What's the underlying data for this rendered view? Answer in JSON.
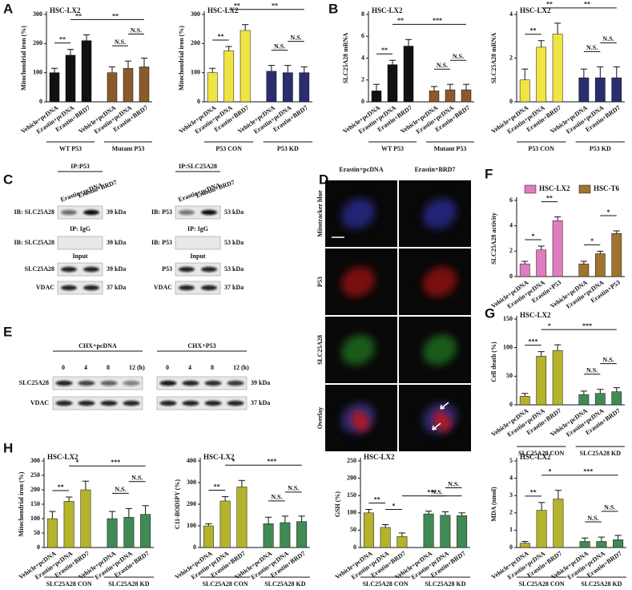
{
  "panel_labels": [
    "A",
    "B",
    "C",
    "D",
    "E",
    "F",
    "G",
    "H"
  ],
  "chart_data": [
    {
      "type": "bar",
      "title": "HSC-LX2",
      "y_label": "Mitochondrial iron (%)",
      "categories": [
        "Vehicle+pcDNA",
        "Erastin+pcDNA",
        "Erastin+BRD7",
        "Vehicle+pcDNA",
        "Erastin+pcDNA",
        "Erastin+BRD7"
      ],
      "groups": [
        "WT P53",
        "Mutant P53"
      ],
      "values": [
        100,
        160,
        210,
        100,
        115,
        120
      ],
      "errors": [
        15,
        20,
        20,
        20,
        25,
        30
      ],
      "colors": [
        "#111111",
        "#111111",
        "#111111",
        "#8b5a2b",
        "#8b5a2b",
        "#8b5a2b"
      ],
      "ylim": [
        0,
        300
      ],
      "yticks": [
        0,
        100,
        200,
        300
      ],
      "annotations": [
        {
          "from": 0,
          "to": 1,
          "text": "**"
        },
        {
          "from": 1,
          "to": 2,
          "text": "**"
        },
        {
          "from": 2,
          "to": 5,
          "text": "**"
        },
        {
          "from": 3,
          "to": 4,
          "text": "N.S."
        },
        {
          "from": 4,
          "to": 5,
          "text": "N.S."
        }
      ]
    },
    {
      "type": "bar",
      "title": "HSC-LX2",
      "y_label": "Mitochondrial iron (%)",
      "categories": [
        "Vehicle+pcDNA",
        "Erastin+pcDNA",
        "Erastin+BRD7",
        "Vehicle+pcDNA",
        "Erastin+pcDNA",
        "Erastin+BRD7"
      ],
      "groups": [
        "P53 CON",
        "P53 KD"
      ],
      "values": [
        100,
        175,
        245,
        105,
        100,
        100
      ],
      "errors": [
        15,
        15,
        20,
        20,
        25,
        20
      ],
      "colors": [
        "#f0e442",
        "#f0e442",
        "#f0e442",
        "#2b2d6e",
        "#2b2d6e",
        "#2b2d6e"
      ],
      "ylim": [
        0,
        300
      ],
      "yticks": [
        0,
        100,
        200,
        300
      ],
      "annotations": [
        {
          "from": 0,
          "to": 1,
          "text": "**"
        },
        {
          "from": 1,
          "to": 2,
          "text": "**"
        },
        {
          "from": 2,
          "to": 5,
          "text": "**"
        },
        {
          "from": 3,
          "to": 4,
          "text": "N.S."
        },
        {
          "from": 4,
          "to": 5,
          "text": "N.S."
        }
      ]
    },
    {
      "type": "bar",
      "title": "HSC-LX2",
      "y_label": "SLC25A28 mRNA",
      "categories": [
        "Vehicle+pcDNA",
        "Erastin+pcDNA",
        "Erastin+BRD7",
        "Vehicle+pcDNA",
        "Erastin+pcDNA",
        "Erastin+BRD7"
      ],
      "groups": [
        "WT P53",
        "Mutant P53"
      ],
      "values": [
        1.0,
        3.4,
        5.1,
        1.0,
        1.1,
        1.1
      ],
      "errors": [
        0.6,
        0.4,
        0.6,
        0.4,
        0.5,
        0.5
      ],
      "colors": [
        "#111111",
        "#111111",
        "#111111",
        "#8b5a2b",
        "#8b5a2b",
        "#8b5a2b"
      ],
      "ylim": [
        0,
        8
      ],
      "yticks": [
        0,
        2,
        4,
        6,
        8
      ],
      "annotations": [
        {
          "from": 0,
          "to": 1,
          "text": "**"
        },
        {
          "from": 1,
          "to": 2,
          "text": "**"
        },
        {
          "from": 2,
          "to": 5,
          "text": "***"
        },
        {
          "from": 3,
          "to": 4,
          "text": "N.S."
        },
        {
          "from": 4,
          "to": 5,
          "text": "N.S."
        }
      ]
    },
    {
      "type": "bar",
      "title": "HSC-LX2",
      "y_label": "SLC25A28 mRNA",
      "categories": [
        "Vehicle+pcDNA",
        "Erastin+pcDNA",
        "Erastin+BRD7",
        "Vehicle+pcDNA",
        "Erastin+pcDNA",
        "Erastin+BRD7"
      ],
      "groups": [
        "P53 CON",
        "P53 KD"
      ],
      "values": [
        1.0,
        2.5,
        3.1,
        1.1,
        1.1,
        1.1
      ],
      "errors": [
        0.5,
        0.3,
        0.5,
        0.4,
        0.5,
        0.5
      ],
      "colors": [
        "#f0e442",
        "#f0e442",
        "#f0e442",
        "#2b2d6e",
        "#2b2d6e",
        "#2b2d6e"
      ],
      "ylim": [
        0,
        4
      ],
      "yticks": [
        0,
        2,
        4
      ],
      "annotations": [
        {
          "from": 0,
          "to": 1,
          "text": "**"
        },
        {
          "from": 1,
          "to": 2,
          "text": "**"
        },
        {
          "from": 2,
          "to": 5,
          "text": "**"
        },
        {
          "from": 3,
          "to": 4,
          "text": "N.S."
        },
        {
          "from": 4,
          "to": 5,
          "text": "N.S."
        }
      ]
    },
    {
      "type": "bar",
      "y_label": "SLC25A28 activity",
      "categories": [
        "Vehicle+pcDNA",
        "Erastin+pcDNA",
        "Erastin+P53"
      ],
      "series": [
        {
          "name": "HSC-LX2",
          "color": "#e07cc0",
          "values": [
            1.0,
            2.1,
            4.4
          ],
          "errors": [
            0.2,
            0.3,
            0.3
          ]
        },
        {
          "name": "HSC-T6",
          "color": "#a0732e",
          "values": [
            1.0,
            1.8,
            3.4
          ],
          "errors": [
            0.2,
            0.2,
            0.2
          ]
        }
      ],
      "legend": "top",
      "ylim": [
        0,
        6
      ],
      "yticks": [
        0,
        2,
        4,
        6
      ],
      "annotations": [
        {
          "from": 0,
          "to": 1,
          "text": "*"
        },
        {
          "from": 1,
          "to": 2,
          "text": "**"
        },
        {
          "from": 3,
          "to": 4,
          "text": "*"
        },
        {
          "from": 4,
          "to": 5,
          "text": "*"
        }
      ]
    },
    {
      "type": "bar",
      "title": "HSC-LX2",
      "y_label": "Cell death (%)",
      "categories": [
        "Vehicle+pcDNA",
        "Erastin+pcDNA",
        "Erastin+BRD7",
        "Vehicle+pcDNA",
        "Erastin+pcDNA",
        "Erastin+BRD7"
      ],
      "groups": [
        "SLC25A28 CON",
        "SLC25A28 KD"
      ],
      "values": [
        15,
        85,
        95,
        18,
        20,
        23
      ],
      "errors": [
        5,
        8,
        10,
        6,
        7,
        7
      ],
      "colors": [
        "#b5b22c",
        "#b5b22c",
        "#b5b22c",
        "#3f8a55",
        "#3f8a55",
        "#3f8a55"
      ],
      "ylim": [
        0,
        150
      ],
      "yticks": [
        0,
        50,
        100,
        150
      ],
      "annotations": [
        {
          "from": 0,
          "to": 1,
          "text": "***"
        },
        {
          "from": 1,
          "to": 2,
          "text": "*"
        },
        {
          "from": 2,
          "to": 5,
          "text": "***"
        },
        {
          "from": 3,
          "to": 4,
          "text": "N.S."
        },
        {
          "from": 4,
          "to": 5,
          "text": "N.S."
        }
      ]
    },
    {
      "type": "bar",
      "title": "HSC-LX2",
      "y_label": "Mitochondrial iron (%)",
      "categories": [
        "Vehicle+pcDNA",
        "Erastin+pcDNA",
        "Erastin+BRD7",
        "Vehicle+pcDNA",
        "Erastin+pcDNA",
        "Erastin+BRD7"
      ],
      "groups": [
        "SLC25A28 CON",
        "SLC25A28 KD"
      ],
      "values": [
        100,
        160,
        200,
        100,
        105,
        115
      ],
      "errors": [
        25,
        15,
        30,
        25,
        30,
        30
      ],
      "colors": [
        "#b5b22c",
        "#b5b22c",
        "#b5b22c",
        "#3f8a55",
        "#3f8a55",
        "#3f8a55"
      ],
      "ylim": [
        0,
        300
      ],
      "yticks": [
        0,
        50,
        100,
        150,
        200,
        250,
        300
      ],
      "annotations": [
        {
          "from": 0,
          "to": 1,
          "text": "**"
        },
        {
          "from": 1,
          "to": 2,
          "text": "*"
        },
        {
          "from": 2,
          "to": 5,
          "text": "***"
        },
        {
          "from": 3,
          "to": 4,
          "text": "N.S."
        },
        {
          "from": 4,
          "to": 5,
          "text": "N.S."
        }
      ]
    },
    {
      "type": "bar",
      "title": "HSC-LX2",
      "y_label": "C11-BODIPY (%)",
      "categories": [
        "Vehicle+pcDNA",
        "Erastin+pcDNA",
        "Erastin+BRD7",
        "Vehicle+pcDNA",
        "Erastin+pcDNA",
        "Erastin+BRD7"
      ],
      "groups": [
        "SLC25A28 CON",
        "SLC25A28 KD"
      ],
      "values": [
        100,
        215,
        280,
        110,
        115,
        120
      ],
      "errors": [
        10,
        20,
        30,
        30,
        30,
        25
      ],
      "colors": [
        "#b5b22c",
        "#b5b22c",
        "#b5b22c",
        "#3f8a55",
        "#3f8a55",
        "#3f8a55"
      ],
      "ylim": [
        0,
        400
      ],
      "yticks": [
        0,
        100,
        200,
        300,
        400
      ],
      "annotations": [
        {
          "from": 0,
          "to": 1,
          "text": "**"
        },
        {
          "from": 1,
          "to": 2,
          "text": "*"
        },
        {
          "from": 2,
          "to": 5,
          "text": "***"
        },
        {
          "from": 3,
          "to": 4,
          "text": "N.S."
        },
        {
          "from": 4,
          "to": 5,
          "text": "N.S."
        }
      ]
    },
    {
      "type": "bar",
      "title": "HSC-LX2",
      "y_label": "GSH (%)",
      "categories": [
        "Vehicle+pcDNA",
        "Erastin+pcDNA",
        "Erastin+BRD7",
        "Vehicle+pcDNA",
        "Erastin+pcDNA",
        "Erastin+BRD7"
      ],
      "groups": [
        "SLC25A28 CON",
        "SLC25A28 KD"
      ],
      "values": [
        100,
        58,
        32,
        97,
        93,
        92
      ],
      "errors": [
        10,
        8,
        10,
        8,
        10,
        8
      ],
      "colors": [
        "#b5b22c",
        "#b5b22c",
        "#b5b22c",
        "#3f8a55",
        "#3f8a55",
        "#3f8a55"
      ],
      "ylim": [
        0,
        250
      ],
      "yticks": [
        0,
        50,
        100,
        150,
        200,
        250
      ],
      "annotations": [
        {
          "from": 0,
          "to": 1,
          "text": "**"
        },
        {
          "from": 1,
          "to": 2,
          "text": "*"
        },
        {
          "from": 2,
          "to": 5,
          "text": "***"
        },
        {
          "from": 3,
          "to": 4,
          "text": "N.S."
        },
        {
          "from": 4,
          "to": 5,
          "text": "N.S."
        }
      ]
    },
    {
      "type": "bar",
      "title": "HSC-LX2",
      "y_label": "MDA (nmol)",
      "categories": [
        "Vehicle+pcDNA",
        "Erastin+pcDNA",
        "Erastin+BRD7",
        "Vehicle+pcDNA",
        "Erastin+pcDNA",
        "Erastin+BRD7"
      ],
      "groups": [
        "SLC25A28 CON",
        "SLC25A28 KD"
      ],
      "values": [
        0.25,
        2.15,
        2.8,
        0.35,
        0.35,
        0.45
      ],
      "errors": [
        0.1,
        0.45,
        0.5,
        0.2,
        0.25,
        0.25
      ],
      "colors": [
        "#b5b22c",
        "#b5b22c",
        "#b5b22c",
        "#3f8a55",
        "#3f8a55",
        "#3f8a55"
      ],
      "ylim": [
        0,
        5
      ],
      "yticks": [
        0,
        1,
        2,
        3,
        4,
        5
      ],
      "annotations": [
        {
          "from": 0,
          "to": 1,
          "text": "**"
        },
        {
          "from": 1,
          "to": 2,
          "text": "*"
        },
        {
          "from": 2,
          "to": 5,
          "text": "***"
        },
        {
          "from": 3,
          "to": 4,
          "text": "N.S."
        },
        {
          "from": 4,
          "to": 5,
          "text": "N.S."
        }
      ]
    }
  ],
  "panel_c": {
    "left": {
      "header": "IP:P53",
      "lanes": [
        "Erastin+pcDNA",
        "Erastin+BRD7"
      ],
      "igg": "IP: IgG",
      "input": "Input",
      "rows": [
        {
          "label": "IB: SLC25A28",
          "size": "39 kDa"
        },
        {
          "label": "IB: SLC25A28",
          "size": "39 kDa"
        },
        {
          "label": "SLC25A28",
          "size": "39 kDa"
        },
        {
          "label": "VDAC",
          "size": "37 kDa"
        }
      ]
    },
    "right": {
      "header": "IP:SLC25A28",
      "lanes": [
        "Erastin+pcDNA",
        "Erastin+BRD7"
      ],
      "igg": "IP: IgG",
      "input": "Input",
      "rows": [
        {
          "label": "IB: P53",
          "size": "53 kDa"
        },
        {
          "label": "IB: P53",
          "size": "53 kDa"
        },
        {
          "label": "P53",
          "size": "53 kDa"
        },
        {
          "label": "VDAC",
          "size": "37 kDa"
        }
      ]
    }
  },
  "panel_d": {
    "columns": [
      "Erastin+pcDNA",
      "Erastin+BRD7"
    ],
    "rows": [
      {
        "label": "Mitotracker blue",
        "color": "#3a3ad0"
      },
      {
        "label": "P53",
        "color": "#d01010"
      },
      {
        "label": "SLC25A28",
        "color": "#2a9a2a"
      },
      {
        "label": "Overlay",
        "color": "#111111"
      }
    ]
  },
  "panel_e": {
    "left": {
      "header": "CHX+pcDNA",
      "times": [
        "0",
        "4",
        "8",
        "12 (h)"
      ]
    },
    "right": {
      "header": "CHX+P53",
      "times": [
        "0",
        "4",
        "8",
        "12 (h)"
      ]
    },
    "rows": [
      {
        "label": "SLC25A28",
        "size": "39 kDa"
      },
      {
        "label": "VDAC",
        "size": "37 kDa"
      }
    ]
  }
}
